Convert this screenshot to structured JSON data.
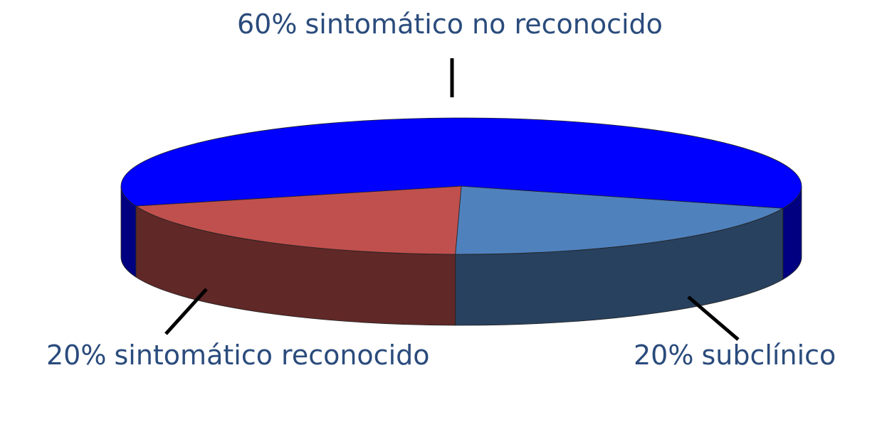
{
  "chart_data": {
    "type": "pie3d",
    "categories": [
      "subclínico",
      "sintomático reconocido",
      "sintomático no reconocido"
    ],
    "values": [
      20,
      20,
      60
    ],
    "value_labels": [
      "20%",
      "20%",
      "60%"
    ],
    "colors": [
      "#4f81bd",
      "#c0504d",
      "#0000ff"
    ]
  }
}
